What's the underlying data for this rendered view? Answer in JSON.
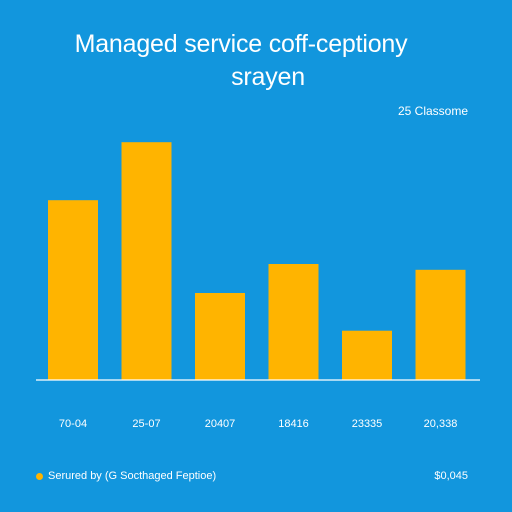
{
  "title_line1": "Managed service coff-ceptiony",
  "title_line2": "srayen",
  "legend_top": "25 Classome",
  "footer": {
    "source_text": "Serured by (G Socthaged Feptioe)",
    "value_text": "$0,045"
  },
  "colors": {
    "background": "#1296dd",
    "bar": "#ffb400",
    "text": "#ffffff"
  },
  "chart_data": {
    "type": "bar",
    "title": "Managed service coff-ceptiony srayen",
    "categories": [
      "70-04",
      "25-07",
      "20407",
      "18416",
      "23335",
      "20,338"
    ],
    "values": [
      62,
      82,
      30,
      40,
      17,
      38
    ],
    "ylim": [
      0,
      100
    ],
    "xlabel": "",
    "ylabel": "",
    "grid": false,
    "legend": "top-right"
  }
}
